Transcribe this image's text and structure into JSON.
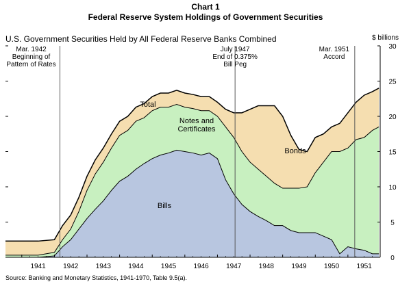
{
  "chart_number": "Chart 1",
  "title": "Federal Reserve System Holdings of Government Securities",
  "subtitle": "U.S. Government Securities Held by All Federal Reserve Banks Combined",
  "unit_label": "$ billions",
  "source": "Source:  Banking and Monetary Statistics, 1941-1970, Table 9.5(a).",
  "colors": {
    "bills": "#b8c6e0",
    "notes": "#c8f0c0",
    "bonds": "#f5deb0",
    "line": "#000000",
    "event_line": "#555555"
  },
  "chart_data": {
    "type": "area",
    "stacked": true,
    "xlabel": "",
    "ylabel": "$ billions",
    "ylim": [
      0,
      30
    ],
    "yticks": [
      0,
      5,
      10,
      15,
      20,
      25,
      30
    ],
    "xlim": [
      1940.5,
      1951.99
    ],
    "xticks": [
      "1941",
      "1942",
      "1943",
      "1944",
      "1945",
      "1946",
      "1947",
      "1948",
      "1949",
      "1950",
      "1951"
    ],
    "x": [
      1940.5,
      1941.0,
      1941.5,
      1942.0,
      1942.25,
      1942.5,
      1942.75,
      1943.0,
      1943.25,
      1943.5,
      1943.75,
      1944.0,
      1944.25,
      1944.5,
      1944.75,
      1945.0,
      1945.25,
      1945.5,
      1945.75,
      1946.0,
      1946.25,
      1946.5,
      1946.75,
      1947.0,
      1947.25,
      1947.5,
      1947.75,
      1948.0,
      1948.25,
      1948.5,
      1948.75,
      1949.0,
      1949.25,
      1949.5,
      1949.75,
      1950.0,
      1950.25,
      1950.5,
      1950.75,
      1951.0,
      1951.25,
      1951.5,
      1951.75,
      1951.95
    ],
    "series": [
      {
        "name": "Bills",
        "values": [
          0.0,
          0.0,
          0.0,
          0.2,
          1.5,
          2.5,
          4.0,
          5.5,
          6.8,
          8.0,
          9.5,
          10.8,
          11.5,
          12.5,
          13.3,
          14.0,
          14.5,
          14.8,
          15.2,
          15.0,
          14.8,
          14.5,
          14.8,
          14.0,
          11.0,
          9.0,
          7.5,
          6.5,
          5.8,
          5.2,
          4.5,
          4.5,
          3.8,
          3.5,
          3.5,
          3.5,
          3.0,
          2.5,
          0.5,
          1.5,
          1.2,
          1.0,
          0.5,
          0.5
        ]
      },
      {
        "name": "Notes and Certificates",
        "values": [
          0.3,
          0.3,
          0.3,
          0.5,
          1.0,
          1.5,
          2.5,
          4.0,
          5.0,
          5.5,
          6.0,
          6.5,
          6.5,
          6.8,
          6.5,
          6.8,
          6.8,
          6.5,
          6.5,
          6.3,
          6.3,
          6.3,
          6.0,
          6.0,
          7.5,
          8.0,
          7.5,
          7.0,
          6.7,
          6.3,
          6.0,
          5.3,
          6.0,
          6.3,
          6.5,
          8.5,
          10.5,
          12.5,
          14.5,
          14.0,
          15.5,
          16.0,
          17.5,
          18.0
        ]
      },
      {
        "name": "Bonds",
        "values": [
          2.0,
          2.0,
          2.0,
          1.8,
          2.0,
          2.0,
          2.0,
          2.0,
          2.0,
          2.0,
          2.0,
          2.0,
          2.0,
          2.0,
          2.0,
          2.0,
          2.0,
          2.0,
          2.0,
          2.0,
          2.0,
          2.0,
          2.0,
          2.0,
          2.5,
          3.5,
          5.5,
          7.5,
          9.0,
          10.0,
          11.0,
          10.2,
          7.5,
          5.5,
          5.0,
          5.0,
          4.0,
          3.5,
          4.0,
          5.0,
          5.3,
          6.0,
          5.5,
          5.5
        ]
      }
    ],
    "total_label": "Total",
    "annotations": [
      {
        "x": 1942.17,
        "label_lines": [
          "Mar. 1942",
          "Beginning of",
          "Pattern of Rates"
        ]
      },
      {
        "x": 1947.54,
        "label_lines": [
          "July 1947",
          "End of 0.375%",
          "Bill Peg"
        ]
      },
      {
        "x": 1951.21,
        "label_lines": [
          "Mar. 1951",
          "Accord"
        ]
      }
    ]
  }
}
